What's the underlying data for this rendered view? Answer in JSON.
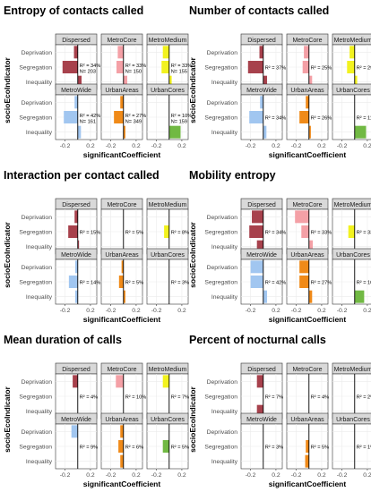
{
  "chart_data": [
    {
      "type": "bar",
      "orientation": "horizontal",
      "title": "Entropy of contacts called",
      "xlabel": "significantCoefficient",
      "ylabel": "socioEcoIndicator",
      "categories": [
        "Deprivation",
        "Segregation",
        "Inequality"
      ],
      "xlim": [
        -0.35,
        0.3
      ],
      "xticks": [
        -0.2,
        0.2
      ],
      "grid": true,
      "panels": [
        {
          "name": "Dispersed",
          "color": "#a7414c",
          "values": [
            -0.06,
            -0.24,
            0.06
          ],
          "annotation": [
            "R² = 34%",
            "N= 203"
          ]
        },
        {
          "name": "MetroCore",
          "color": "#f4a0a6",
          "values": [
            -0.09,
            -0.11,
            0.06
          ],
          "annotation": [
            "R² = 33%",
            "N= 150"
          ]
        },
        {
          "name": "MetroMedium",
          "color": "#f2f21f",
          "values": [
            -0.1,
            -0.12,
            0.04
          ],
          "annotation": [
            "R² = 33%",
            "N= 155"
          ]
        },
        {
          "name": "MetroWide",
          "color": "#a1c6f0",
          "values": [
            -0.05,
            -0.22,
            0.05
          ],
          "annotation": [
            "R² = 42%",
            "N= 161"
          ]
        },
        {
          "name": "UrbanAreas",
          "color": "#f08a18",
          "values": [
            -0.05,
            -0.15,
            0.03
          ],
          "annotation": [
            "R² = 27%",
            "N= 349"
          ]
        },
        {
          "name": "UrbanCores",
          "color": "#71b943",
          "values": [
            0,
            0,
            0.18
          ],
          "annotation": [
            "R² = 10%",
            "N= 159"
          ]
        }
      ]
    },
    {
      "type": "bar",
      "orientation": "horizontal",
      "title": "Number of contacts called",
      "xlabel": "significantCoefficient",
      "ylabel": "socioEcoIndicator",
      "categories": [
        "Deprivation",
        "Segregation",
        "Inequality"
      ],
      "xlim": [
        -0.35,
        0.3
      ],
      "xticks": [
        -0.2,
        0.2
      ],
      "grid": true,
      "panels": [
        {
          "name": "Dispersed",
          "color": "#a7414c",
          "values": [
            -0.06,
            -0.24,
            0.06
          ],
          "annotation": [
            "R² = 37%"
          ]
        },
        {
          "name": "MetroCore",
          "color": "#f4a0a6",
          "values": [
            -0.08,
            -0.1,
            0.05
          ],
          "annotation": [
            "R² = 25%"
          ]
        },
        {
          "name": "MetroMedium",
          "color": "#f2f21f",
          "values": [
            -0.08,
            -0.12,
            0.04
          ],
          "annotation": [
            "R² = 29%"
          ]
        },
        {
          "name": "MetroWide",
          "color": "#a1c6f0",
          "values": [
            -0.05,
            -0.22,
            0.05
          ],
          "annotation": [
            "R² = 34%"
          ]
        },
        {
          "name": "UrbanAreas",
          "color": "#f08a18",
          "values": [
            -0.05,
            -0.15,
            0.03
          ],
          "annotation": [
            "R² = 26%"
          ]
        },
        {
          "name": "UrbanCores",
          "color": "#71b943",
          "values": [
            0,
            0,
            0.18
          ],
          "annotation": [
            "R² = 11%"
          ]
        }
      ]
    },
    {
      "type": "bar",
      "orientation": "horizontal",
      "title": "Interaction per contact called",
      "xlabel": "significantCoefficient",
      "ylabel": "socioEcoIndicator",
      "categories": [
        "Deprivation",
        "Segregation",
        "Inequality"
      ],
      "xlim": [
        -0.35,
        0.3
      ],
      "xticks": [
        -0.2,
        0.2
      ],
      "grid": true,
      "panels": [
        {
          "name": "Dispersed",
          "color": "#a7414c",
          "values": [
            -0.05,
            -0.15,
            0.02
          ],
          "annotation": [
            "R² = 15%"
          ]
        },
        {
          "name": "MetroCore",
          "color": "#f4a0a6",
          "values": [
            0,
            0,
            0
          ],
          "annotation": [
            "R² = 5%"
          ]
        },
        {
          "name": "MetroMedium",
          "color": "#f2f21f",
          "values": [
            0,
            -0.08,
            0
          ],
          "annotation": [
            "R² = 8%"
          ]
        },
        {
          "name": "MetroWide",
          "color": "#a1c6f0",
          "values": [
            -0.04,
            -0.14,
            -0.04
          ],
          "annotation": [
            "R² = 14%"
          ]
        },
        {
          "name": "UrbanAreas",
          "color": "#f08a18",
          "values": [
            -0.03,
            -0.07,
            0.03
          ],
          "annotation": [
            "R² = 5%"
          ]
        },
        {
          "name": "UrbanCores",
          "color": "#71b943",
          "values": [
            0,
            0,
            0
          ],
          "annotation": [
            "R² = 3%"
          ]
        }
      ]
    },
    {
      "type": "bar",
      "orientation": "horizontal",
      "title": "Mobility entropy",
      "xlabel": "significantCoefficient",
      "ylabel": "socioEcoIndicator",
      "categories": [
        "Deprivation",
        "Segregation",
        "Inequality"
      ],
      "xlim": [
        -0.35,
        0.3
      ],
      "xticks": [
        -0.2,
        0.2
      ],
      "grid": true,
      "panels": [
        {
          "name": "Dispersed",
          "color": "#a7414c",
          "values": [
            -0.18,
            -0.22,
            -0.1
          ],
          "annotation": [
            "R² = 34%"
          ]
        },
        {
          "name": "MetroCore",
          "color": "#f4a0a6",
          "values": [
            -0.22,
            -0.12,
            0.06
          ],
          "annotation": [
            "R² = 33%"
          ]
        },
        {
          "name": "MetroMedium",
          "color": "#f2f21f",
          "values": [
            0,
            -0.1,
            0
          ],
          "annotation": [
            "R² = 33%"
          ]
        },
        {
          "name": "MetroWide",
          "color": "#a1c6f0",
          "values": [
            -0.2,
            -0.2,
            0.06
          ],
          "annotation": [
            "R² = 42%"
          ]
        },
        {
          "name": "UrbanAreas",
          "color": "#f08a18",
          "values": [
            -0.15,
            -0.15,
            0.05
          ],
          "annotation": [
            "R² = 27%"
          ]
        },
        {
          "name": "UrbanCores",
          "color": "#71b943",
          "values": [
            0,
            0,
            0.15
          ],
          "annotation": [
            "R² = 10%"
          ]
        }
      ]
    },
    {
      "type": "bar",
      "orientation": "horizontal",
      "title": "Mean duration of calls",
      "xlabel": "significantCoefficient",
      "ylabel": "socioEcoIndicator",
      "categories": [
        "Deprivation",
        "Segregation",
        "Inequality"
      ],
      "xlim": [
        -0.35,
        0.3
      ],
      "xticks": [
        -0.2,
        0.2
      ],
      "grid": true,
      "panels": [
        {
          "name": "Dispersed",
          "color": "#a7414c",
          "values": [
            -0.08,
            0,
            0
          ],
          "annotation": [
            "R² = 4%"
          ]
        },
        {
          "name": "MetroCore",
          "color": "#f4a0a6",
          "values": [
            -0.12,
            0,
            0
          ],
          "annotation": [
            "R² = 10%"
          ]
        },
        {
          "name": "MetroMedium",
          "color": "#f2f21f",
          "values": [
            -0.1,
            0,
            0
          ],
          "annotation": [
            "R² = 7%"
          ]
        },
        {
          "name": "MetroWide",
          "color": "#a1c6f0",
          "values": [
            -0.1,
            0,
            0
          ],
          "annotation": [
            "R² = 9%"
          ]
        },
        {
          "name": "UrbanAreas",
          "color": "#f08a18",
          "values": [
            -0.05,
            -0.08,
            -0.05
          ],
          "annotation": [
            "R² = 6%"
          ]
        },
        {
          "name": "UrbanCores",
          "color": "#71b943",
          "values": [
            0,
            -0.1,
            0
          ],
          "annotation": [
            "R² = 5%"
          ]
        }
      ]
    },
    {
      "type": "bar",
      "orientation": "horizontal",
      "title": "Percent of nocturnal calls",
      "xlabel": "significantCoefficient",
      "ylabel": "socioEcoIndicator",
      "categories": [
        "Deprivation",
        "Segregation",
        "Inequality"
      ],
      "xlim": [
        -0.35,
        0.3
      ],
      "xticks": [
        -0.2,
        0.2
      ],
      "grid": true,
      "panels": [
        {
          "name": "Dispersed",
          "color": "#a7414c",
          "values": [
            -0.1,
            0,
            -0.1
          ],
          "annotation": [
            "R² = 7%"
          ]
        },
        {
          "name": "MetroCore",
          "color": "#f4a0a6",
          "values": [
            0,
            0,
            0
          ],
          "annotation": [
            "R² = 4%"
          ]
        },
        {
          "name": "MetroMedium",
          "color": "#f2f21f",
          "values": [
            0,
            0,
            0
          ],
          "annotation": [
            "R² = 2%"
          ]
        },
        {
          "name": "MetroWide",
          "color": "#a1c6f0",
          "values": [
            0,
            0,
            0
          ],
          "annotation": [
            "R² = 3%"
          ]
        },
        {
          "name": "UrbanAreas",
          "color": "#f08a18",
          "values": [
            0,
            -0.05,
            -0.06
          ],
          "annotation": [
            "R² = 5%"
          ]
        },
        {
          "name": "UrbanCores",
          "color": "#71b943",
          "values": [
            0,
            0,
            0
          ],
          "annotation": [
            "R² = 1%"
          ]
        }
      ]
    }
  ]
}
